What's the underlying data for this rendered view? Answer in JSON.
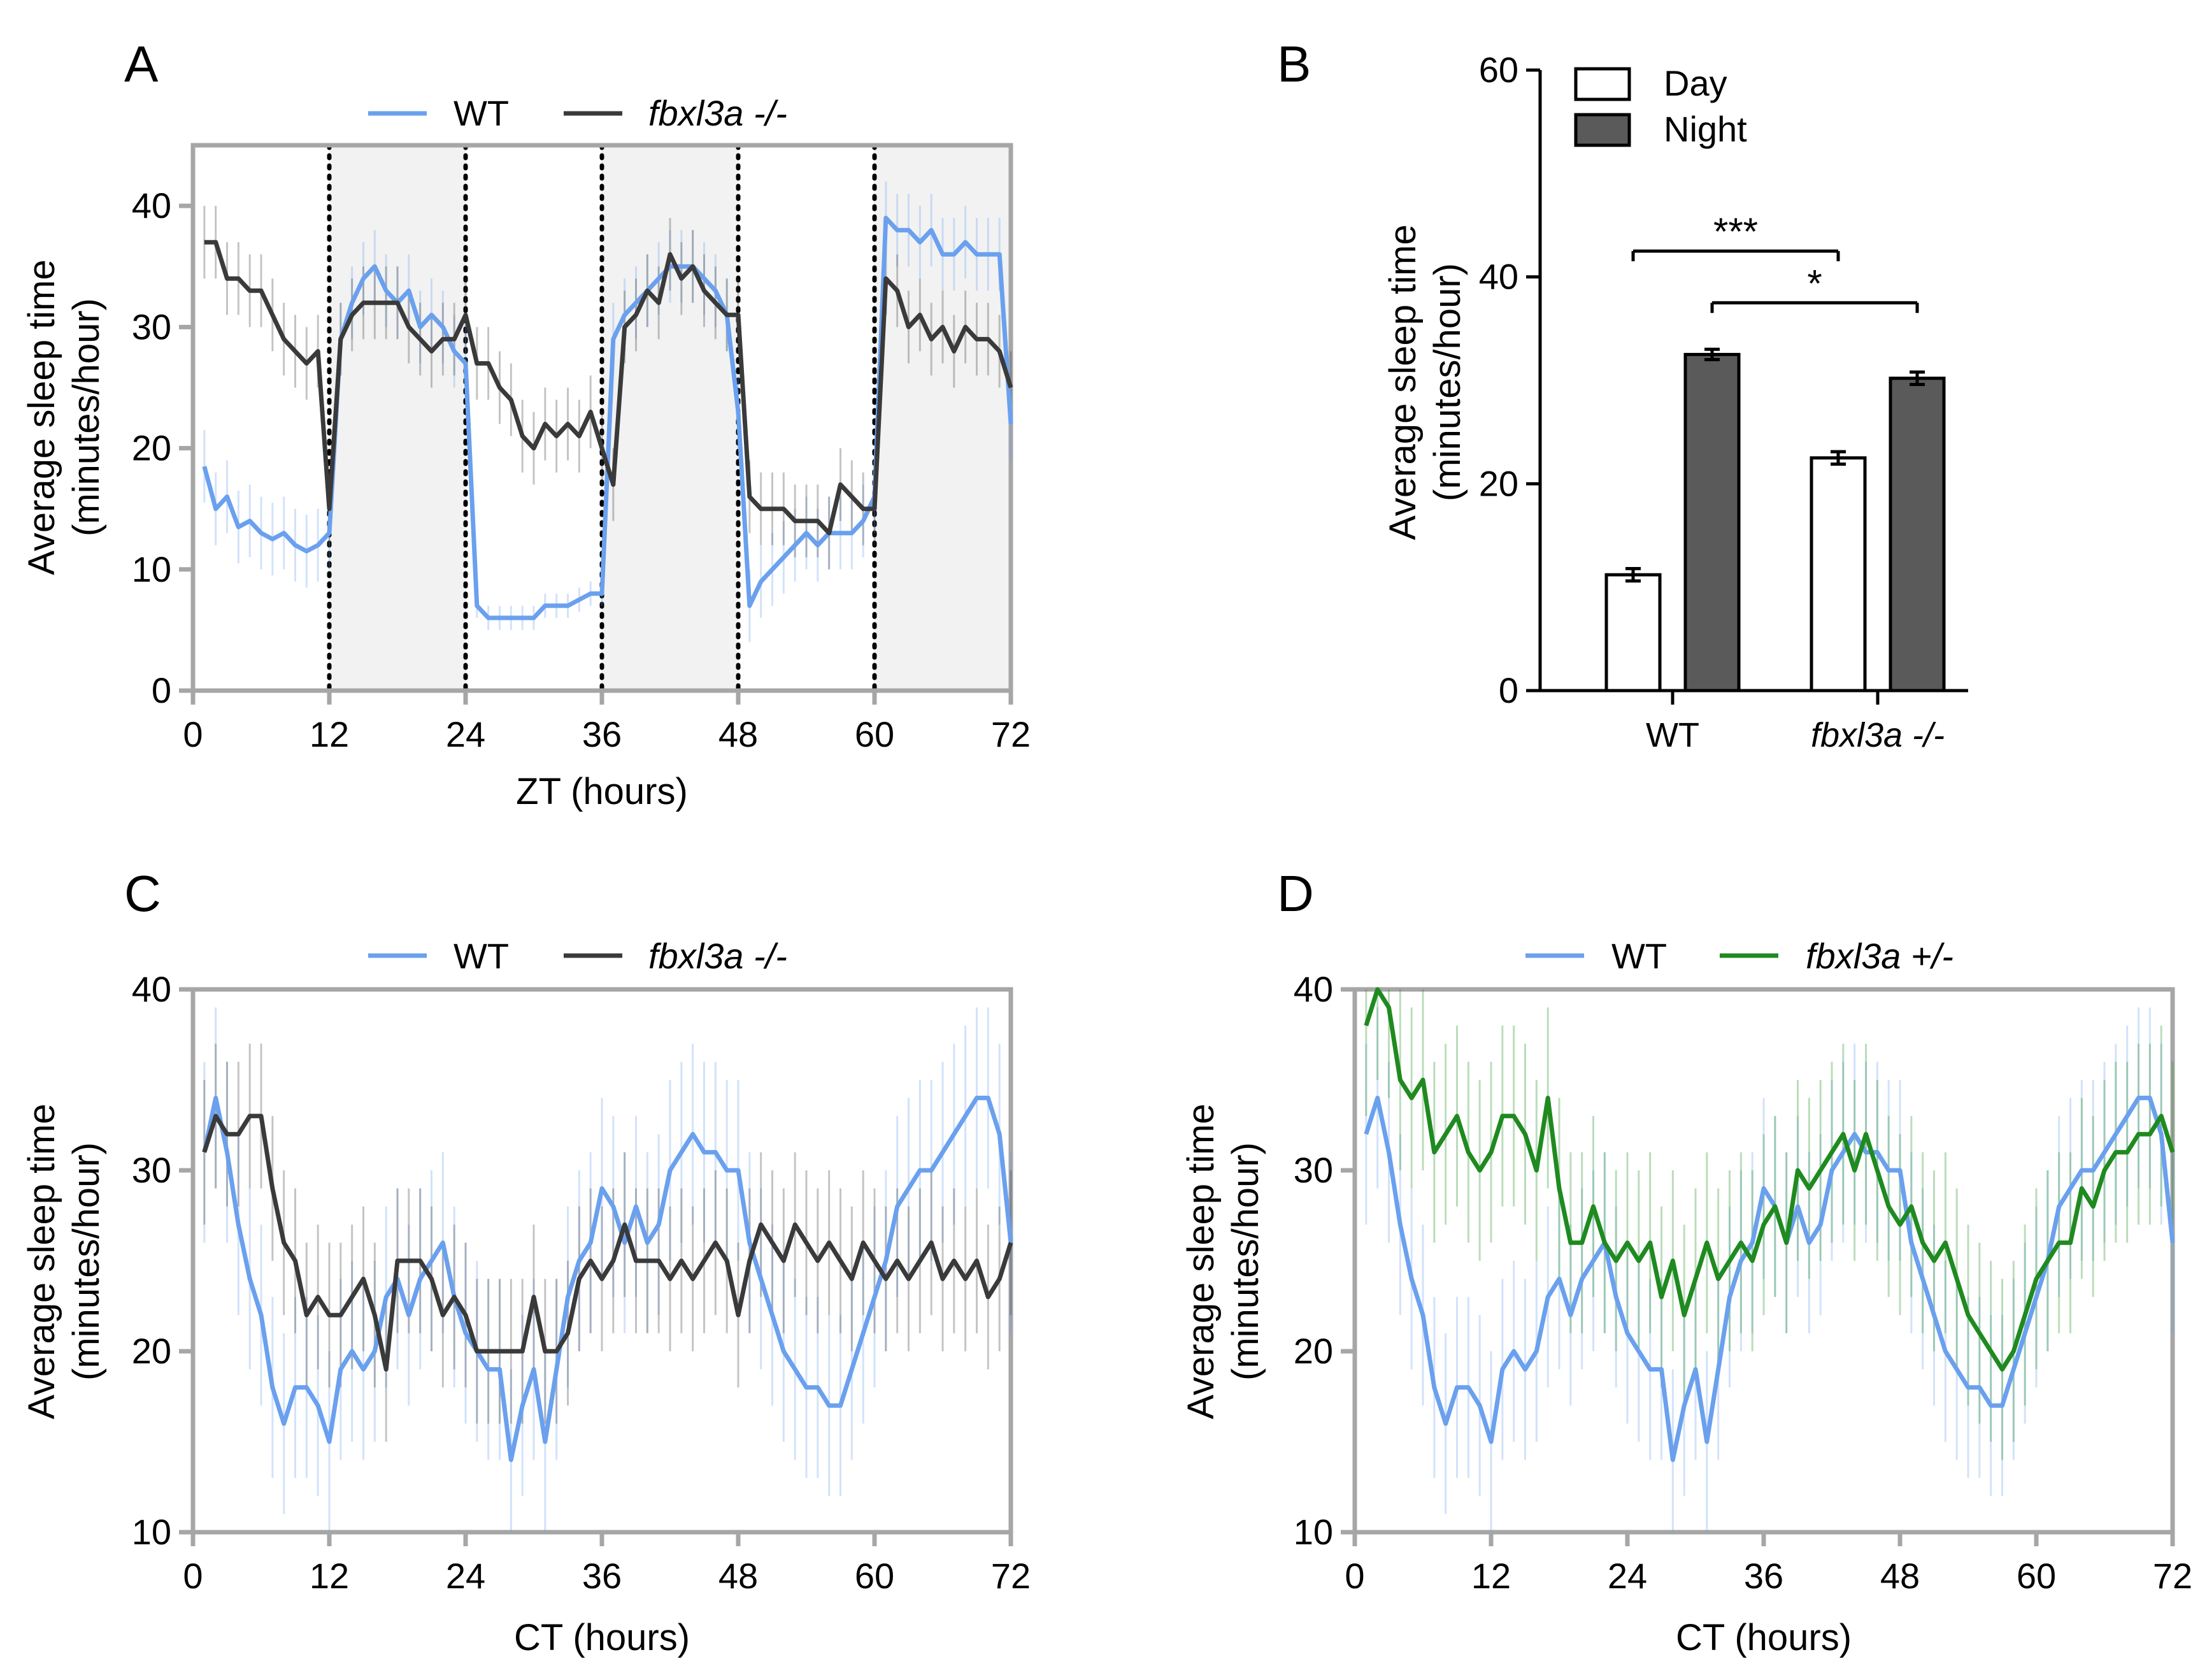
{
  "colors": {
    "wt": "#6aa0ee",
    "ko": "#3a3a3a",
    "het": "#1f8a1f",
    "axis": "#a6a6a6",
    "night_shade": "#f2f2f2",
    "bar_day": "#ffffff",
    "bar_night": "#5a5a5a"
  },
  "chart_data": [
    {
      "panel": "A",
      "type": "line",
      "legend": [
        "WT",
        "fbxl3a -/-"
      ],
      "xlabel": "ZT (hours)",
      "ylabel": [
        "Average sleep time",
        "(minutes/hour)"
      ],
      "xlim": [
        0,
        72
      ],
      "ylim": [
        0,
        45
      ],
      "xticks": [
        "0",
        "12",
        "24",
        "36",
        "48",
        "60",
        "72"
      ],
      "yticks": [
        "0",
        "10",
        "20",
        "30",
        "40"
      ],
      "night_intervals": [
        [
          12,
          24
        ],
        [
          36,
          48
        ],
        [
          60,
          72
        ]
      ],
      "dotted_lines": [
        12,
        24,
        36,
        48,
        60
      ],
      "x": [
        1,
        2,
        3,
        4,
        5,
        6,
        7,
        8,
        9,
        10,
        11,
        12,
        13,
        14,
        15,
        16,
        17,
        18,
        19,
        20,
        21,
        22,
        23,
        24,
        25,
        26,
        27,
        28,
        29,
        30,
        31,
        32,
        33,
        34,
        35,
        36,
        37,
        38,
        39,
        40,
        41,
        42,
        43,
        44,
        45,
        46,
        47,
        48,
        49,
        50,
        51,
        52,
        53,
        54,
        55,
        56,
        57,
        58,
        59,
        60,
        61,
        62,
        63,
        64,
        65,
        66,
        67,
        68,
        69,
        70,
        71,
        72
      ],
      "series": [
        {
          "name": "WT",
          "values": [
            18.5,
            15,
            16,
            13.5,
            14,
            13,
            12.5,
            13,
            12,
            11.5,
            12,
            13,
            29,
            32,
            34,
            35,
            33,
            32,
            33,
            30,
            31,
            30,
            28,
            27,
            7,
            6,
            6,
            6,
            6,
            6,
            7,
            7,
            7,
            7.5,
            8,
            8,
            29,
            31,
            32,
            33,
            34,
            35,
            35,
            35,
            34,
            33,
            31,
            23,
            7,
            9,
            10,
            11,
            12,
            13,
            12,
            13,
            13,
            13,
            14,
            16,
            39,
            38,
            38,
            37,
            38,
            36,
            36,
            37,
            36,
            36,
            36,
            22
          ],
          "errors": [
            3,
            3,
            3,
            3,
            3,
            3,
            3,
            3,
            3,
            3,
            3,
            3,
            3,
            3,
            3,
            3,
            3,
            3,
            3,
            3,
            3,
            3,
            3,
            3,
            1,
            1,
            1,
            1,
            1,
            1,
            1,
            1,
            1,
            1,
            1,
            1,
            3,
            3,
            3,
            3,
            3,
            3,
            3,
            3,
            3,
            3,
            3,
            3,
            3,
            3,
            3,
            3,
            3,
            3,
            3,
            3,
            3,
            3,
            3,
            3,
            3,
            3,
            3,
            3,
            3,
            3,
            3,
            3,
            3,
            3,
            3,
            3
          ]
        },
        {
          "name": "fbxl3a -/-",
          "values": [
            37,
            37,
            34,
            34,
            33,
            33,
            31,
            29,
            28,
            27,
            28,
            15,
            29,
            31,
            32,
            32,
            32,
            32,
            30,
            29,
            28,
            29,
            29,
            31,
            27,
            27,
            25,
            24,
            21,
            20,
            22,
            21,
            22,
            21,
            23,
            20,
            17,
            30,
            31,
            33,
            32,
            36,
            34,
            35,
            33,
            32,
            31,
            31,
            16,
            15,
            15,
            15,
            14,
            14,
            14,
            13,
            17,
            16,
            15,
            15,
            34,
            33,
            30,
            31,
            29,
            30,
            28,
            30,
            29,
            29,
            28,
            25
          ],
          "errors": [
            3,
            3,
            3,
            3,
            3,
            3,
            3,
            3,
            3,
            3,
            3,
            3,
            3,
            3,
            3,
            3,
            3,
            3,
            3,
            3,
            3,
            3,
            3,
            3,
            3,
            3,
            3,
            3,
            3,
            3,
            3,
            3,
            3,
            3,
            3,
            3,
            3,
            3,
            3,
            3,
            3,
            3,
            3,
            3,
            3,
            3,
            3,
            3,
            3,
            3,
            3,
            3,
            3,
            3,
            3,
            3,
            3,
            3,
            3,
            3,
            3,
            3,
            3,
            3,
            3,
            3,
            3,
            3,
            3,
            3,
            3,
            3
          ]
        }
      ]
    },
    {
      "panel": "B",
      "type": "bar",
      "legend": [
        "Day",
        "Night"
      ],
      "categories": [
        "WT",
        "fbxl3a -/-"
      ],
      "ylabel": [
        "Average sleep time",
        "(minutes/hour)"
      ],
      "ylim": [
        0,
        60
      ],
      "yticks": [
        "0",
        "20",
        "40",
        "60"
      ],
      "series": [
        {
          "name": "Day",
          "values": [
            11.2,
            22.5
          ],
          "errors": [
            0.6,
            0.6
          ]
        },
        {
          "name": "Night",
          "values": [
            32.5,
            30.2
          ],
          "errors": [
            0.5,
            0.6
          ]
        }
      ],
      "significance": [
        {
          "label": "***",
          "from": "WT Day",
          "to": "fbxl3a -/- Day",
          "y": 42.5
        },
        {
          "label": "*",
          "from": "WT Night",
          "to": "fbxl3a -/- Night",
          "y": 37.5
        }
      ]
    },
    {
      "panel": "C",
      "type": "line",
      "legend": [
        "WT",
        "fbxl3a -/-"
      ],
      "xlabel": "CT (hours)",
      "ylabel": [
        "Average sleep time",
        "(minutes/hour)"
      ],
      "xlim": [
        0,
        72
      ],
      "ylim": [
        10,
        40
      ],
      "xticks": [
        "0",
        "12",
        "24",
        "36",
        "48",
        "60",
        "72"
      ],
      "yticks": [
        "10",
        "20",
        "30",
        "40"
      ],
      "x": [
        1,
        2,
        3,
        4,
        5,
        6,
        7,
        8,
        9,
        10,
        11,
        12,
        13,
        14,
        15,
        16,
        17,
        18,
        19,
        20,
        21,
        22,
        23,
        24,
        25,
        26,
        27,
        28,
        29,
        30,
        31,
        32,
        33,
        34,
        35,
        36,
        37,
        38,
        39,
        40,
        41,
        42,
        43,
        44,
        45,
        46,
        47,
        48,
        49,
        50,
        51,
        52,
        53,
        54,
        55,
        56,
        57,
        58,
        59,
        60,
        61,
        62,
        63,
        64,
        65,
        66,
        67,
        68,
        69,
        70,
        71,
        72
      ],
      "series": [
        {
          "name": "WT",
          "values": [
            31,
            34,
            31,
            27,
            24,
            22,
            18,
            16,
            18,
            18,
            17,
            15,
            19,
            20,
            19,
            20,
            23,
            24,
            22,
            24,
            25,
            26,
            23,
            21,
            20,
            19,
            19,
            14,
            17,
            19,
            15,
            19,
            23,
            25,
            26,
            29,
            28,
            26,
            28,
            26,
            27,
            30,
            31,
            32,
            31,
            31,
            30,
            30,
            26,
            24,
            22,
            20,
            19,
            18,
            18,
            17,
            17,
            19,
            21,
            23,
            25,
            28,
            29,
            30,
            30,
            31,
            32,
            33,
            34,
            34,
            32,
            26
          ],
          "errors": [
            5,
            5,
            5,
            5,
            5,
            5,
            5,
            5,
            5,
            5,
            5,
            5,
            5,
            5,
            5,
            5,
            5,
            5,
            5,
            5,
            5,
            5,
            5,
            5,
            5,
            5,
            5,
            5,
            5,
            5,
            5,
            5,
            5,
            5,
            5,
            5,
            5,
            5,
            5,
            5,
            5,
            5,
            5,
            5,
            5,
            5,
            5,
            5,
            5,
            5,
            5,
            5,
            5,
            5,
            5,
            5,
            5,
            5,
            5,
            5,
            5,
            5,
            5,
            5,
            5,
            5,
            5,
            5,
            5,
            5,
            5,
            5
          ]
        },
        {
          "name": "fbxl3a -/-",
          "values": [
            31,
            33,
            32,
            32,
            33,
            33,
            29,
            26,
            25,
            22,
            23,
            22,
            22,
            23,
            24,
            22,
            19,
            25,
            25,
            25,
            24,
            22,
            23,
            22,
            20,
            20,
            20,
            20,
            20,
            23,
            20,
            20,
            21,
            24,
            25,
            24,
            25,
            27,
            25,
            25,
            25,
            24,
            25,
            24,
            25,
            26,
            25,
            22,
            25,
            27,
            26,
            25,
            27,
            26,
            25,
            26,
            25,
            24,
            26,
            25,
            24,
            25,
            24,
            25,
            26,
            24,
            25,
            24,
            25,
            23,
            24,
            26
          ],
          "errors": [
            4,
            4,
            4,
            4,
            4,
            4,
            4,
            4,
            4,
            4,
            4,
            4,
            4,
            4,
            4,
            4,
            4,
            4,
            4,
            4,
            4,
            4,
            4,
            4,
            4,
            4,
            4,
            4,
            4,
            4,
            4,
            4,
            4,
            4,
            4,
            4,
            4,
            4,
            4,
            4,
            4,
            4,
            4,
            4,
            4,
            4,
            4,
            4,
            4,
            4,
            4,
            4,
            4,
            4,
            4,
            4,
            4,
            4,
            4,
            4,
            4,
            4,
            4,
            4,
            4,
            4,
            4,
            4,
            4,
            4,
            4,
            4
          ]
        }
      ]
    },
    {
      "panel": "D",
      "type": "line",
      "legend": [
        "WT",
        "fbxl3a +/-"
      ],
      "xlabel": "CT (hours)",
      "ylabel": [
        "Average sleep time",
        "(minutes/hour)"
      ],
      "xlim": [
        0,
        72
      ],
      "ylim": [
        10,
        40
      ],
      "xticks": [
        "0",
        "12",
        "24",
        "36",
        "48",
        "60",
        "72"
      ],
      "yticks": [
        "10",
        "20",
        "30",
        "40"
      ],
      "x": [
        1,
        2,
        3,
        4,
        5,
        6,
        7,
        8,
        9,
        10,
        11,
        12,
        13,
        14,
        15,
        16,
        17,
        18,
        19,
        20,
        21,
        22,
        23,
        24,
        25,
        26,
        27,
        28,
        29,
        30,
        31,
        32,
        33,
        34,
        35,
        36,
        37,
        38,
        39,
        40,
        41,
        42,
        43,
        44,
        45,
        46,
        47,
        48,
        49,
        50,
        51,
        52,
        53,
        54,
        55,
        56,
        57,
        58,
        59,
        60,
        61,
        62,
        63,
        64,
        65,
        66,
        67,
        68,
        69,
        70,
        71,
        72
      ],
      "series": [
        {
          "name": "WT",
          "values": [
            32,
            34,
            31,
            27,
            24,
            22,
            18,
            16,
            18,
            18,
            17,
            15,
            19,
            20,
            19,
            20,
            23,
            24,
            22,
            24,
            25,
            26,
            23,
            21,
            20,
            19,
            19,
            14,
            17,
            19,
            15,
            19,
            23,
            25,
            26,
            29,
            28,
            26,
            28,
            26,
            27,
            30,
            31,
            32,
            31,
            31,
            30,
            30,
            26,
            24,
            22,
            20,
            19,
            18,
            18,
            17,
            17,
            19,
            21,
            23,
            25,
            28,
            29,
            30,
            30,
            31,
            32,
            33,
            34,
            34,
            32,
            26
          ],
          "errors": [
            5,
            5,
            5,
            5,
            5,
            5,
            5,
            5,
            5,
            5,
            5,
            5,
            5,
            5,
            5,
            5,
            5,
            5,
            5,
            5,
            5,
            5,
            5,
            5,
            5,
            5,
            5,
            5,
            5,
            5,
            5,
            5,
            5,
            5,
            5,
            5,
            5,
            5,
            5,
            5,
            5,
            5,
            5,
            5,
            5,
            5,
            5,
            5,
            5,
            5,
            5,
            5,
            5,
            5,
            5,
            5,
            5,
            5,
            5,
            5,
            5,
            5,
            5,
            5,
            5,
            5,
            5,
            5,
            5,
            5,
            5,
            5
          ]
        },
        {
          "name": "fbxl3a +/-",
          "values": [
            38,
            40,
            39,
            35,
            34,
            35,
            31,
            32,
            33,
            31,
            30,
            31,
            33,
            33,
            32,
            30,
            34,
            29,
            26,
            26,
            28,
            26,
            25,
            26,
            25,
            26,
            23,
            25,
            22,
            24,
            26,
            24,
            25,
            26,
            25,
            27,
            28,
            26,
            30,
            29,
            30,
            31,
            32,
            30,
            32,
            30,
            28,
            27,
            28,
            26,
            25,
            26,
            24,
            22,
            21,
            20,
            19,
            20,
            22,
            24,
            25,
            26,
            26,
            29,
            28,
            30,
            31,
            31,
            32,
            32,
            33,
            31
          ],
          "errors": [
            5,
            5,
            5,
            5,
            5,
            5,
            5,
            5,
            5,
            5,
            5,
            5,
            5,
            5,
            5,
            5,
            5,
            5,
            5,
            5,
            5,
            5,
            5,
            5,
            5,
            5,
            5,
            5,
            5,
            5,
            5,
            5,
            5,
            5,
            5,
            5,
            5,
            5,
            5,
            5,
            5,
            5,
            5,
            5,
            5,
            5,
            5,
            5,
            5,
            5,
            5,
            5,
            5,
            5,
            5,
            5,
            5,
            5,
            5,
            5,
            5,
            5,
            5,
            5,
            5,
            5,
            5,
            5,
            5,
            5,
            5,
            5
          ]
        }
      ]
    }
  ]
}
